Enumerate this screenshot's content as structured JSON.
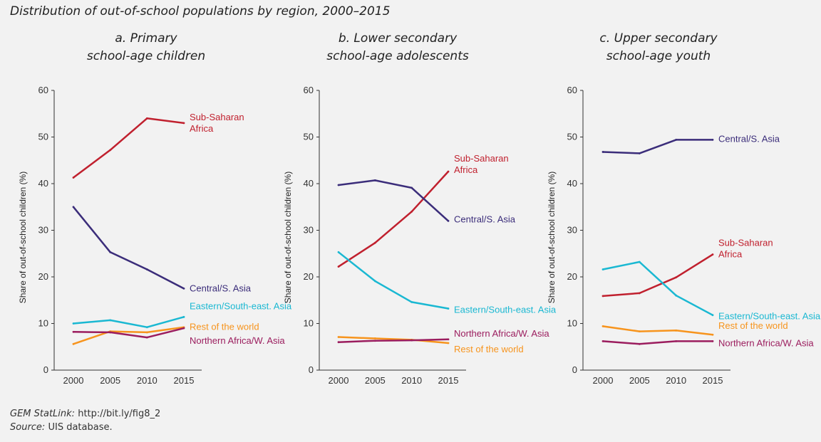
{
  "figure": {
    "title": "Distribution of out-of-school populations by region, 2000–2015",
    "statlink_label": "GEM StatLink:",
    "statlink_url": "http://bit.ly/fig8_2",
    "source_label": "Source:",
    "source_text": "UIS database."
  },
  "colors": {
    "sub_saharan_africa": "#c0202e",
    "central_s_asia": "#3b2d7a",
    "eastern_se_asia": "#1ab8d2",
    "rest_of_world": "#f7941d",
    "northern_africa_w_asia": "#9b1d5e"
  },
  "chart_data": [
    {
      "type": "line",
      "title_line1": "a. Primary",
      "title_line2": "school-age children",
      "ylabel": "Share of out-of-school children (%)",
      "ylim": [
        0,
        60
      ],
      "yticks": [
        "0",
        "10",
        "20",
        "30",
        "40",
        "50",
        "60"
      ],
      "x": [
        "2000",
        "2005",
        "2010",
        "2015"
      ],
      "series": [
        {
          "key": "ssa",
          "color_key": "sub_saharan_africa",
          "label_lines": [
            "Sub-Saharan",
            "Africa"
          ],
          "values": [
            41.3,
            47.2,
            54.0,
            53.0
          ]
        },
        {
          "key": "csa",
          "color_key": "central_s_asia",
          "label_lines": [
            "Central/S. Asia"
          ],
          "values": [
            35.0,
            25.3,
            21.6,
            17.5
          ]
        },
        {
          "key": "esea",
          "color_key": "eastern_se_asia",
          "label_lines": [
            "Eastern/South-east. Asia"
          ],
          "values": [
            10.0,
            10.7,
            9.2,
            11.4
          ]
        },
        {
          "key": "row",
          "color_key": "rest_of_world",
          "label_lines": [
            "Rest of the world"
          ],
          "values": [
            5.6,
            8.3,
            8.1,
            9.2
          ]
        },
        {
          "key": "nawa",
          "color_key": "northern_africa_w_asia",
          "label_lines": [
            "Northern Africa/W. Asia"
          ],
          "values": [
            8.2,
            8.1,
            7.0,
            9.0
          ]
        }
      ]
    },
    {
      "type": "line",
      "title_line1": "b. Lower secondary",
      "title_line2": "school-age adolescents",
      "ylabel": "Share of out-of-school children (%)",
      "ylim": [
        0,
        60
      ],
      "yticks": [
        "0",
        "10",
        "20",
        "30",
        "40",
        "50",
        "60"
      ],
      "x": [
        "2000",
        "2005",
        "2010",
        "2015"
      ],
      "series": [
        {
          "key": "ssa",
          "color_key": "sub_saharan_africa",
          "label_lines": [
            "Sub-Saharan",
            "Africa"
          ],
          "values": [
            22.2,
            27.3,
            34.0,
            42.6
          ]
        },
        {
          "key": "csa",
          "color_key": "central_s_asia",
          "label_lines": [
            "Central/S. Asia"
          ],
          "values": [
            39.7,
            40.7,
            39.1,
            32.0
          ]
        },
        {
          "key": "esea",
          "color_key": "eastern_se_asia",
          "label_lines": [
            "Eastern/South-east. Asia"
          ],
          "values": [
            25.3,
            19.1,
            14.6,
            13.2
          ]
        },
        {
          "key": "row",
          "color_key": "rest_of_world",
          "label_lines": [
            "Rest of the world"
          ],
          "values": [
            7.1,
            6.8,
            6.5,
            5.8
          ]
        },
        {
          "key": "nawa",
          "color_key": "northern_africa_w_asia",
          "label_lines": [
            "Northern Africa/W. Asia"
          ],
          "values": [
            6.0,
            6.3,
            6.4,
            6.6
          ]
        }
      ]
    },
    {
      "type": "line",
      "title_line1": "c. Upper secondary",
      "title_line2": "school-age youth",
      "ylabel": "Share of out-of-school children (%)",
      "ylim": [
        0,
        60
      ],
      "yticks": [
        "0",
        "10",
        "20",
        "30",
        "40",
        "50",
        "60"
      ],
      "x": [
        "2000",
        "2005",
        "2010",
        "2015"
      ],
      "series": [
        {
          "key": "csa",
          "color_key": "central_s_asia",
          "label_lines": [
            "Central/S. Asia"
          ],
          "values": [
            46.8,
            46.5,
            49.4,
            49.4
          ]
        },
        {
          "key": "ssa",
          "color_key": "sub_saharan_africa",
          "label_lines": [
            "Sub-Saharan",
            "Africa"
          ],
          "values": [
            15.9,
            16.5,
            19.9,
            24.8
          ]
        },
        {
          "key": "esea",
          "color_key": "eastern_se_asia",
          "label_lines": [
            "Eastern/South-east. Asia"
          ],
          "values": [
            21.6,
            23.2,
            16.0,
            11.8
          ]
        },
        {
          "key": "row",
          "color_key": "rest_of_world",
          "label_lines": [
            "Rest of the world"
          ],
          "values": [
            9.4,
            8.3,
            8.5,
            7.6
          ]
        },
        {
          "key": "nawa",
          "color_key": "northern_africa_w_asia",
          "label_lines": [
            "Northern Africa/W. Asia"
          ],
          "values": [
            6.2,
            5.6,
            6.2,
            6.2
          ]
        }
      ]
    }
  ]
}
